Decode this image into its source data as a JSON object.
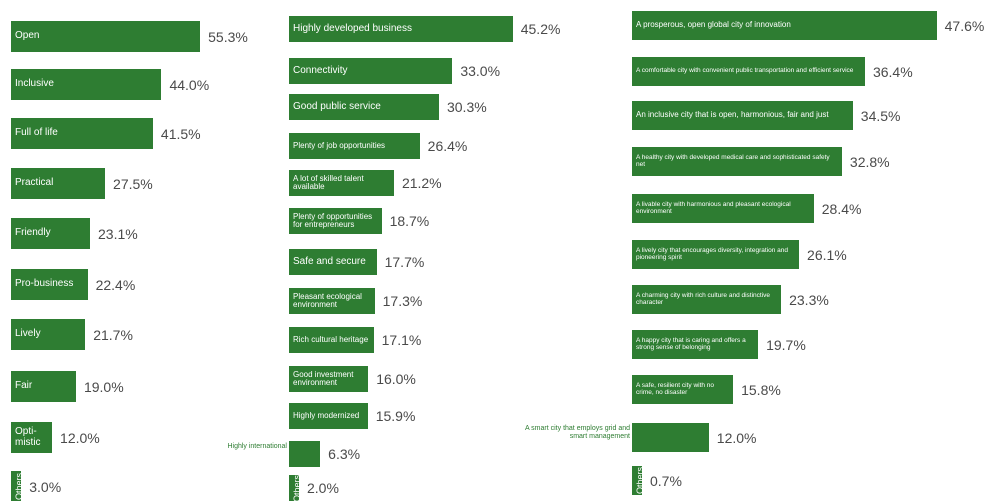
{
  "colors": {
    "bar": "#2e7d32",
    "value_text": "#4a4a4a",
    "outside_label": "#2e7d32"
  },
  "chart_data": [
    {
      "type": "bar",
      "orientation": "horizontal",
      "categories": [
        "Open",
        "Inclusive",
        "Full of life",
        "Practical",
        "Friendly",
        "Pro-business",
        "Lively",
        "Fair",
        "Opti-\nmistic",
        "Others"
      ],
      "values": [
        55.3,
        44.0,
        41.5,
        27.5,
        23.1,
        22.4,
        21.7,
        19.0,
        12.0,
        3.0
      ],
      "value_labels": [
        "55.3%",
        "44.0%",
        "41.5%",
        "27.5%",
        "23.1%",
        "22.4%",
        "21.7%",
        "19.0%",
        "12.0%",
        "3.0%"
      ],
      "title": "",
      "xlabel": "",
      "ylabel": "",
      "grid": false
    },
    {
      "type": "bar",
      "orientation": "horizontal",
      "categories": [
        "Highly developed business",
        "Connectivity",
        "Good public service",
        "Plenty of job opportunities",
        "A lot of skilled talent available",
        "Plenty of opportunities for entrepreneurs",
        "Safe and secure",
        "Pleasant ecological environment",
        "Rich cultural heritage",
        "Good investment environment",
        "Highly modernized",
        "Highly international",
        "Others"
      ],
      "values": [
        45.2,
        33.0,
        30.3,
        26.4,
        21.2,
        18.7,
        17.7,
        17.3,
        17.1,
        16.0,
        15.9,
        6.3,
        2.0
      ],
      "value_labels": [
        "45.2%",
        "33.0%",
        "30.3%",
        "26.4%",
        "21.2%",
        "18.7%",
        "17.7%",
        "17.3%",
        "17.1%",
        "16.0%",
        "15.9%",
        "6.3%",
        "2.0%"
      ],
      "title": "",
      "xlabel": "",
      "ylabel": "",
      "grid": false
    },
    {
      "type": "bar",
      "orientation": "horizontal",
      "categories": [
        "A prosperous, open global city of innovation",
        "A comfortable city with convenient public transportation and efficient service",
        "An inclusive city that is open, harmonious, fair and just",
        "A healthy city with developed medical care and sophisticated safety net",
        "A livable city with harmonious and pleasant ecological environment",
        "A lively city that encourages diversity, integration and pioneering spirit",
        "A charming city with rich culture and distinctive character",
        "A happy city that is caring and offers a strong sense of belonging",
        "A safe, resilient city with no crime, no disaster",
        "A smart city that employs grid and smart management",
        "Others"
      ],
      "values": [
        47.6,
        36.4,
        34.5,
        32.8,
        28.4,
        26.1,
        23.3,
        19.7,
        15.8,
        12.0,
        0.7
      ],
      "value_labels": [
        "47.6%",
        "36.4%",
        "34.5%",
        "32.8%",
        "28.4%",
        "26.1%",
        "23.3%",
        "19.7%",
        "15.8%",
        "12.0%",
        "0.7%"
      ],
      "title": "",
      "xlabel": "",
      "ylabel": "",
      "grid": false
    }
  ]
}
